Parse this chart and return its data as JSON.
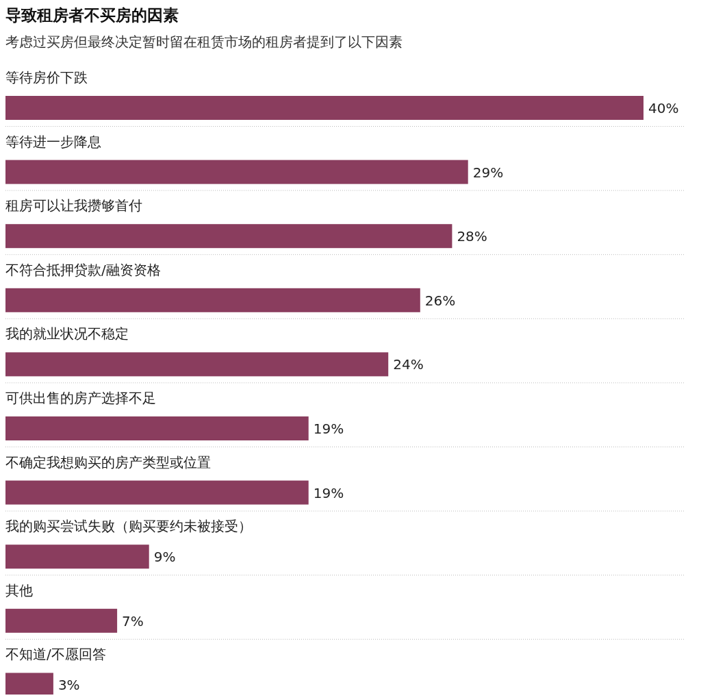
{
  "chart_data": {
    "type": "bar",
    "orientation": "horizontal",
    "title": "导致租房者不买房的因素",
    "subtitle": "考虑过买房但最终决定暂时留在租赁市场的租房者提到了以下因素",
    "categories": [
      "等待房价下跌",
      "等待进一步降息",
      "租房可以让我攒够首付",
      "不符合抵押贷款/融资资格",
      "我的就业状况不稳定",
      "可供出售的房产选择不足",
      "不确定我想购买的房产类型或位置",
      "我的购买尝试失败（购买要约未被接受）",
      "其他",
      "不知道/不愿回答"
    ],
    "values": [
      40,
      29,
      28,
      26,
      24,
      19,
      19,
      9,
      7,
      3
    ],
    "value_labels": [
      "40%",
      "29%",
      "28%",
      "26%",
      "24%",
      "19%",
      "19%",
      "9%",
      "7%",
      "3%"
    ],
    "color": "#8a3d5e"
  }
}
